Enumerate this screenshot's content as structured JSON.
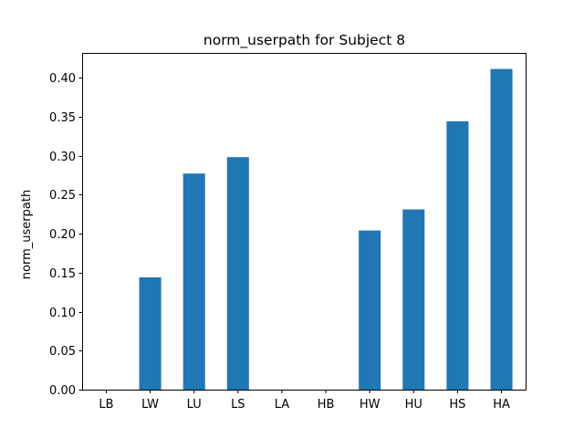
{
  "chart_data": {
    "type": "bar",
    "title": "norm_userpath for Subject 8",
    "xlabel": "",
    "ylabel": "norm_userpath",
    "categories": [
      "LB",
      "LW",
      "LU",
      "LS",
      "LA",
      "HB",
      "HW",
      "HU",
      "HS",
      "HA"
    ],
    "values": [
      0,
      0.144,
      0.277,
      0.298,
      0,
      0,
      0.204,
      0.231,
      0.344,
      0.411
    ],
    "ylim": [
      0,
      0.4316
    ],
    "yticks": [
      0.0,
      0.05,
      0.1,
      0.15,
      0.2,
      0.25,
      0.3,
      0.35,
      0.4
    ],
    "ytick_labels": [
      "0.00",
      "0.05",
      "0.10",
      "0.15",
      "0.20",
      "0.25",
      "0.30",
      "0.35",
      "0.40"
    ],
    "bar_color": "#1f77b4",
    "grid": false,
    "legend": "none"
  }
}
